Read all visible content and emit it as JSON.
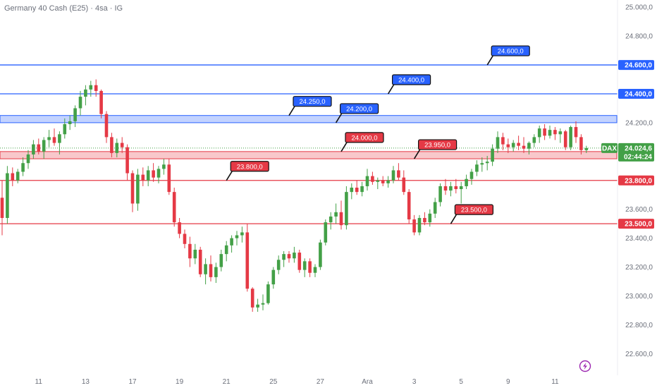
{
  "header": {
    "title": "Germany 40 Cash (E25) · 4sa · IG"
  },
  "colors": {
    "up": "#43a047",
    "down": "#e53945",
    "blue": "#2962ff",
    "red": "#e53945",
    "axis_text": "#6b6f7a",
    "price_label": "#43a047"
  },
  "icons": {
    "bottom_right": "lightning-bolt-icon"
  },
  "chart_data": {
    "type": "candlestick",
    "title": "Germany 40 Cash (E25) · 4sa · IG",
    "ylim": [
      22450,
      25050
    ],
    "y_ticks": [
      {
        "value": 25000,
        "label": "25.000,0"
      },
      {
        "value": 24800,
        "label": "24.800,0"
      },
      {
        "value": 24200,
        "label": "24.200,0"
      },
      {
        "value": 23600,
        "label": "23.600,0"
      },
      {
        "value": 23400,
        "label": "23.400,0"
      },
      {
        "value": 23200,
        "label": "23.200,0"
      },
      {
        "value": 23000,
        "label": "23.000,0"
      },
      {
        "value": 22800,
        "label": "22.800,0"
      },
      {
        "value": 22600,
        "label": "22.600,0"
      }
    ],
    "x_ticks": [
      {
        "index": 7,
        "label": "11"
      },
      {
        "index": 16,
        "label": "13"
      },
      {
        "index": 25,
        "label": "17"
      },
      {
        "index": 34,
        "label": "19"
      },
      {
        "index": 43,
        "label": "21"
      },
      {
        "index": 52,
        "label": "25"
      },
      {
        "index": 61,
        "label": "27"
      },
      {
        "index": 70,
        "label": "Ara"
      },
      {
        "index": 79,
        "label": "3"
      },
      {
        "index": 88,
        "label": "5"
      },
      {
        "index": 97,
        "label": "9"
      },
      {
        "index": 106,
        "label": "11"
      }
    ],
    "candles": [
      [
        23680,
        23800,
        23420,
        23540
      ],
      [
        23540,
        23900,
        23500,
        23850
      ],
      [
        23850,
        23890,
        23760,
        23800
      ],
      [
        23800,
        23880,
        23780,
        23860
      ],
      [
        23860,
        23960,
        23830,
        23920
      ],
      [
        23920,
        24010,
        23880,
        23980
      ],
      [
        23980,
        24080,
        23950,
        24050
      ],
      [
        24050,
        24090,
        23980,
        24000
      ],
      [
        24000,
        24100,
        23950,
        24080
      ],
      [
        24080,
        24150,
        24030,
        24100
      ],
      [
        24100,
        24160,
        24040,
        24060
      ],
      [
        24060,
        24140,
        23980,
        24120
      ],
      [
        24120,
        24230,
        24090,
        24190
      ],
      [
        24190,
        24250,
        24150,
        24210
      ],
      [
        24210,
        24320,
        24170,
        24300
      ],
      [
        24300,
        24420,
        24250,
        24380
      ],
      [
        24380,
        24460,
        24320,
        24430
      ],
      [
        24430,
        24490,
        24380,
        24460
      ],
      [
        24460,
        24500,
        24380,
        24420
      ],
      [
        24420,
        24430,
        24230,
        24260
      ],
      [
        24260,
        24280,
        24060,
        24100
      ],
      [
        24100,
        24130,
        23960,
        23990
      ],
      [
        23990,
        24090,
        23960,
        24060
      ],
      [
        24060,
        24100,
        23990,
        24030
      ],
      [
        24030,
        24050,
        23800,
        23850
      ],
      [
        23850,
        23870,
        23580,
        23640
      ],
      [
        23640,
        23880,
        23590,
        23840
      ],
      [
        23840,
        23890,
        23760,
        23800
      ],
      [
        23800,
        23900,
        23760,
        23870
      ],
      [
        23870,
        23920,
        23790,
        23820
      ],
      [
        23820,
        23900,
        23780,
        23880
      ],
      [
        23880,
        23950,
        23840,
        23910
      ],
      [
        23910,
        23950,
        23700,
        23720
      ],
      [
        23720,
        23750,
        23480,
        23510
      ],
      [
        23510,
        23540,
        23400,
        23430
      ],
      [
        23430,
        23460,
        23330,
        23360
      ],
      [
        23360,
        23410,
        23200,
        23260
      ],
      [
        23260,
        23360,
        23220,
        23320
      ],
      [
        23320,
        23340,
        23130,
        23150
      ],
      [
        23150,
        23260,
        23080,
        23220
      ],
      [
        23220,
        23280,
        23100,
        23130
      ],
      [
        23130,
        23230,
        23090,
        23200
      ],
      [
        23200,
        23320,
        23170,
        23290
      ],
      [
        23290,
        23380,
        23240,
        23350
      ],
      [
        23350,
        23420,
        23300,
        23400
      ],
      [
        23400,
        23450,
        23350,
        23420
      ],
      [
        23420,
        23480,
        23370,
        23440
      ],
      [
        23440,
        23500,
        23030,
        23050
      ],
      [
        23050,
        23060,
        22890,
        22920
      ],
      [
        22920,
        22980,
        22890,
        22940
      ],
      [
        22940,
        23010,
        22900,
        22950
      ],
      [
        22950,
        23100,
        22940,
        23080
      ],
      [
        23080,
        23200,
        23050,
        23180
      ],
      [
        23180,
        23280,
        23150,
        23250
      ],
      [
        23250,
        23310,
        23200,
        23290
      ],
      [
        23290,
        23310,
        23230,
        23260
      ],
      [
        23260,
        23340,
        23230,
        23300
      ],
      [
        23300,
        23320,
        23160,
        23180
      ],
      [
        23180,
        23260,
        23130,
        23240
      ],
      [
        23240,
        23260,
        23130,
        23160
      ],
      [
        23160,
        23220,
        23130,
        23200
      ],
      [
        23200,
        23390,
        23180,
        23370
      ],
      [
        23370,
        23530,
        23350,
        23510
      ],
      [
        23510,
        23580,
        23460,
        23550
      ],
      [
        23550,
        23640,
        23500,
        23580
      ],
      [
        23580,
        23660,
        23460,
        23490
      ],
      [
        23490,
        23760,
        23460,
        23720
      ],
      [
        23720,
        23780,
        23670,
        23750
      ],
      [
        23750,
        23800,
        23700,
        23720
      ],
      [
        23720,
        23790,
        23690,
        23760
      ],
      [
        23760,
        23880,
        23730,
        23830
      ],
      [
        23830,
        23860,
        23770,
        23790
      ],
      [
        23790,
        23820,
        23740,
        23800
      ],
      [
        23800,
        23830,
        23760,
        23780
      ],
      [
        23780,
        23830,
        23750,
        23800
      ],
      [
        23800,
        23900,
        23780,
        23870
      ],
      [
        23870,
        23920,
        23800,
        23820
      ],
      [
        23820,
        23870,
        23700,
        23720
      ],
      [
        23720,
        23740,
        23500,
        23530
      ],
      [
        23530,
        23560,
        23420,
        23440
      ],
      [
        23440,
        23560,
        23420,
        23540
      ],
      [
        23540,
        23580,
        23490,
        23510
      ],
      [
        23510,
        23600,
        23480,
        23570
      ],
      [
        23570,
        23680,
        23540,
        23650
      ],
      [
        23650,
        23780,
        23620,
        23760
      ],
      [
        23760,
        23810,
        23700,
        23730
      ],
      [
        23730,
        23790,
        23690,
        23760
      ],
      [
        23760,
        23810,
        23710,
        23740
      ],
      [
        23740,
        23790,
        23640,
        23760
      ],
      [
        23760,
        23840,
        23740,
        23810
      ],
      [
        23810,
        23880,
        23770,
        23860
      ],
      [
        23860,
        23940,
        23830,
        23910
      ],
      [
        23910,
        23960,
        23860,
        23920
      ],
      [
        23920,
        23970,
        23870,
        23930
      ],
      [
        23930,
        24050,
        23900,
        24020
      ],
      [
        24020,
        24140,
        23990,
        24100
      ],
      [
        24100,
        24130,
        24010,
        24050
      ],
      [
        24050,
        24090,
        23990,
        24030
      ],
      [
        24030,
        24080,
        24000,
        24060
      ],
      [
        24060,
        24110,
        24010,
        24040
      ],
      [
        24040,
        24100,
        23990,
        24020
      ],
      [
        24020,
        24070,
        23980,
        24060
      ],
      [
        24060,
        24120,
        24030,
        24100
      ],
      [
        24100,
        24180,
        24060,
        24160
      ],
      [
        24160,
        24190,
        24080,
        24110
      ],
      [
        24110,
        24180,
        24090,
        24150
      ],
      [
        24150,
        24170,
        24080,
        24120
      ],
      [
        24120,
        24160,
        24060,
        24140
      ],
      [
        24140,
        24150,
        24010,
        24030
      ],
      [
        24030,
        24180,
        24010,
        24170
      ],
      [
        24170,
        24210,
        24060,
        24100
      ],
      [
        24100,
        24120,
        23980,
        24010
      ],
      [
        24010,
        24040,
        23990,
        24024.6
      ]
    ],
    "levels": [
      {
        "value": 24600,
        "label": "24.600,0",
        "color": "blue"
      },
      {
        "value": 24400,
        "label": "24.400,0",
        "color": "blue"
      },
      {
        "value": 23800,
        "label": "23.800,0",
        "color": "red"
      },
      {
        "value": 23500,
        "label": "23.500,0",
        "color": "red"
      }
    ],
    "zones": [
      {
        "from": 24200,
        "to": 24250,
        "color": "blue"
      },
      {
        "from": 23950,
        "to": 24000,
        "color": "red"
      }
    ],
    "callouts": [
      {
        "text": "24.600,0",
        "value": 24600,
        "anchor_index": 93,
        "color": "blue"
      },
      {
        "text": "24.400,0",
        "value": 24400,
        "anchor_index": 74,
        "color": "blue"
      },
      {
        "text": "24.250,0",
        "value": 24250,
        "anchor_index": 55,
        "color": "blue"
      },
      {
        "text": "24.200,0",
        "value": 24200,
        "anchor_index": 64,
        "color": "blue"
      },
      {
        "text": "24.000,0",
        "value": 24000,
        "anchor_index": 65,
        "color": "red"
      },
      {
        "text": "23.950,0",
        "value": 23950,
        "anchor_index": 79,
        "color": "red"
      },
      {
        "text": "23.800,0",
        "value": 23800,
        "anchor_index": 43,
        "color": "red"
      },
      {
        "text": "23.500,0",
        "value": 23500,
        "anchor_index": 86,
        "color": "red"
      }
    ],
    "current": {
      "symbol": "DAX",
      "price": "24.024,6",
      "countdown": "02:44:24",
      "value": 24024.6
    }
  }
}
